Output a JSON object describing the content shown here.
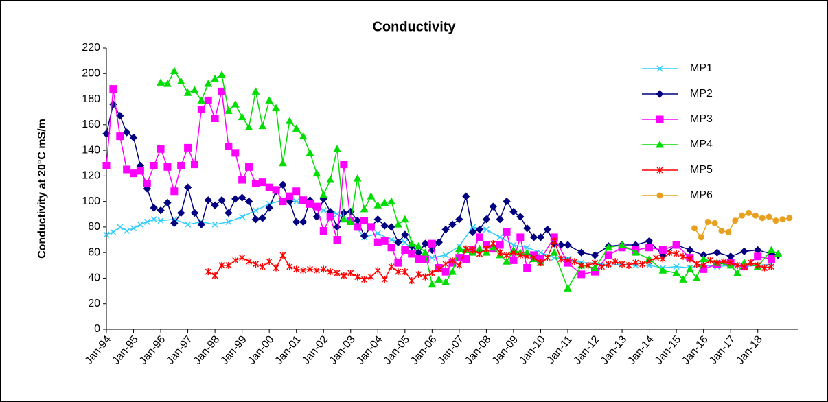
{
  "chart_data": {
    "type": "line",
    "title": "Conductivity",
    "y_label": "Conductivity at 20°C  mS/m",
    "xlim": [
      "Jan-94",
      "Jul-19"
    ],
    "xticks": [
      "Jan-94",
      "Jan-95",
      "Jan-96",
      "Jan-97",
      "Jan-98",
      "Jan-99",
      "Jan-00",
      "Jan-01",
      "Jan-02",
      "Jan-03",
      "Jan-04",
      "Jan-05",
      "Jan-06",
      "Jan-07",
      "Jan-08",
      "Jan-09",
      "Jan-10",
      "Jan-11",
      "Jan-12",
      "Jan-13",
      "Jan-14",
      "Jan-15",
      "Jan-16",
      "Jan-17",
      "Jan-18"
    ],
    "ylim": [
      0,
      220
    ],
    "yticks": [
      0,
      20,
      40,
      60,
      80,
      100,
      120,
      140,
      160,
      180,
      200,
      220
    ],
    "grid": false,
    "legend": "right",
    "series": [
      {
        "name": "MP1",
        "color": "#33ccff",
        "marker": "x",
        "x": [
          "Jan-94",
          "Apr-94",
          "Jul-94",
          "Oct-94",
          "Jan-95",
          "Apr-95",
          "Jul-95",
          "Oct-95",
          "Jan-96",
          "Jul-96",
          "Jan-97",
          "Jul-97",
          "Jan-98",
          "Jul-98",
          "Jan-99",
          "Jul-99",
          "Jan-00",
          "Jul-00",
          "Jan-01",
          "Jul-01",
          "Jan-02",
          "Jul-02",
          "Jan-03",
          "Jul-03",
          "Jan-04",
          "Jul-04",
          "Jan-05",
          "Jul-05",
          "Jan-06",
          "Jul-06",
          "Jan-07",
          "Jul-07",
          "Jan-08",
          "Jul-08",
          "Jan-09",
          "Jul-09",
          "Jan-10",
          "Jul-10",
          "Jan-11",
          "Jul-11",
          "Jan-12",
          "Jul-12",
          "Jan-13",
          "Jul-13",
          "Jan-14",
          "Jul-14",
          "Jan-15",
          "Jul-15",
          "Jan-16",
          "Jul-16",
          "Jan-17",
          "Jul-17",
          "Jan-18",
          "Jul-18"
        ],
        "values": [
          74,
          76,
          80,
          77,
          79,
          82,
          84,
          86,
          85,
          86,
          82,
          84,
          82,
          84,
          88,
          93,
          98,
          101,
          100,
          98,
          93,
          90,
          85,
          72,
          75,
          70,
          68,
          58,
          56,
          58,
          65,
          80,
          78,
          72,
          66,
          64,
          60,
          56,
          55,
          52,
          52,
          50,
          51,
          50,
          50,
          48,
          49,
          48,
          50,
          49,
          50,
          49,
          50,
          51
        ]
      },
      {
        "name": "MP2",
        "color": "#000080",
        "marker": "diamond",
        "x": [
          "Jan-94",
          "Apr-94",
          "Jul-94",
          "Oct-94",
          "Jan-95",
          "Apr-95",
          "Jul-95",
          "Oct-95",
          "Jan-96",
          "Apr-96",
          "Jul-96",
          "Oct-96",
          "Jan-97",
          "Apr-97",
          "Jul-97",
          "Oct-97",
          "Jan-98",
          "Apr-98",
          "Jul-98",
          "Oct-98",
          "Jan-99",
          "Apr-99",
          "Jul-99",
          "Oct-99",
          "Jan-00",
          "Apr-00",
          "Jul-00",
          "Oct-00",
          "Jan-01",
          "Apr-01",
          "Jul-01",
          "Oct-01",
          "Jan-02",
          "Apr-02",
          "Jul-02",
          "Oct-02",
          "Jan-03",
          "Apr-03",
          "Jul-03",
          "Oct-03",
          "Jan-04",
          "Apr-04",
          "Jul-04",
          "Oct-04",
          "Jan-05",
          "Apr-05",
          "Jul-05",
          "Oct-05",
          "Jan-06",
          "Apr-06",
          "Jul-06",
          "Oct-06",
          "Jan-07",
          "Apr-07",
          "Jul-07",
          "Oct-07",
          "Jan-08",
          "Apr-08",
          "Jul-08",
          "Oct-08",
          "Jan-09",
          "Apr-09",
          "Jul-09",
          "Oct-09",
          "Jan-10",
          "Apr-10",
          "Jul-10",
          "Oct-10",
          "Jan-11",
          "Jul-11",
          "Jan-12",
          "Jul-12",
          "Jan-13",
          "Jul-13",
          "Jan-14",
          "Jul-14",
          "Jan-15",
          "Jul-15",
          "Jan-16",
          "Jul-16",
          "Jan-17",
          "Jul-17",
          "Jan-18",
          "Jul-18",
          "Oct-18"
        ],
        "values": [
          153,
          176,
          167,
          154,
          150,
          128,
          110,
          95,
          93,
          99,
          83,
          91,
          111,
          91,
          82,
          101,
          97,
          101,
          91,
          102,
          103,
          100,
          86,
          87,
          95,
          108,
          113,
          100,
          84,
          84,
          101,
          88,
          102,
          92,
          80,
          91,
          92,
          85,
          73,
          80,
          86,
          81,
          80,
          68,
          74,
          65,
          60,
          67,
          62,
          68,
          78,
          82,
          86,
          104,
          76,
          78,
          86,
          96,
          86,
          100,
          92,
          88,
          79,
          72,
          72,
          78,
          67,
          66,
          66,
          60,
          58,
          65,
          66,
          66,
          69,
          58,
          66,
          62,
          58,
          60,
          57,
          61,
          62,
          59,
          58
        ]
      },
      {
        "name": "MP3",
        "color": "#ff00ff",
        "marker": "square",
        "x": [
          "Jan-94",
          "Apr-94",
          "Jul-94",
          "Oct-94",
          "Jan-95",
          "Apr-95",
          "Jul-95",
          "Oct-95",
          "Jan-96",
          "Apr-96",
          "Jul-96",
          "Oct-96",
          "Jan-97",
          "Apr-97",
          "Jul-97",
          "Oct-97",
          "Jan-98",
          "Apr-98",
          "Jul-98",
          "Oct-98",
          "Jan-99",
          "Apr-99",
          "Jul-99",
          "Oct-99",
          "Jan-00",
          "Apr-00",
          "Jul-00",
          "Oct-00",
          "Jan-01",
          "Apr-01",
          "Jul-01",
          "Oct-01",
          "Jan-02",
          "Apr-02",
          "Jul-02",
          "Oct-02",
          "Jan-03",
          "Apr-03",
          "Jul-03",
          "Oct-03",
          "Jan-04",
          "Apr-04",
          "Jul-04",
          "Oct-04",
          "Jan-05",
          "Apr-05",
          "Jul-05",
          "Oct-05",
          "Jan-06",
          "Apr-06",
          "Jul-06",
          "Oct-06",
          "Jan-07",
          "Apr-07",
          "Jul-07",
          "Oct-07",
          "Jan-08",
          "Apr-08",
          "Jul-08",
          "Oct-08",
          "Jan-09",
          "Apr-09",
          "Jul-09",
          "Oct-09",
          "Jan-10",
          "Jul-10",
          "Jan-11",
          "Jul-11",
          "Jan-12",
          "Jul-12",
          "Jan-13",
          "Jul-13",
          "Jan-14",
          "Jul-14",
          "Jan-15",
          "Jul-15",
          "Jan-16",
          "Jul-16",
          "Jan-17",
          "Jul-17",
          "Jan-18",
          "Jul-18"
        ],
        "values": [
          128,
          188,
          151,
          125,
          122,
          124,
          114,
          128,
          141,
          127,
          108,
          128,
          142,
          129,
          172,
          179,
          165,
          186,
          143,
          138,
          117,
          127,
          114,
          115,
          111,
          109,
          100,
          104,
          108,
          101,
          98,
          96,
          77,
          88,
          70,
          129,
          85,
          80,
          85,
          80,
          68,
          69,
          64,
          52,
          62,
          59,
          55,
          55,
          67,
          48,
          45,
          52,
          56,
          55,
          62,
          72,
          66,
          63,
          66,
          76,
          54,
          72,
          48,
          58,
          55,
          72,
          52,
          43,
          45,
          58,
          64,
          62,
          64,
          62,
          66,
          56,
          47,
          51,
          52,
          49,
          57,
          55
        ]
      },
      {
        "name": "MP4",
        "color": "#00dd00",
        "marker": "triangle",
        "x": [
          "Jan-96",
          "Apr-96",
          "Jul-96",
          "Oct-96",
          "Jan-97",
          "Apr-97",
          "Jul-97",
          "Oct-97",
          "Jan-98",
          "Apr-98",
          "Jul-98",
          "Oct-98",
          "Jan-99",
          "Apr-99",
          "Jul-99",
          "Oct-99",
          "Jan-00",
          "Apr-00",
          "Jul-00",
          "Oct-00",
          "Jan-01",
          "Apr-01",
          "Jul-01",
          "Oct-01",
          "Jan-02",
          "Apr-02",
          "Jul-02",
          "Oct-02",
          "Jan-03",
          "Apr-03",
          "Jul-03",
          "Oct-03",
          "Jan-04",
          "Apr-04",
          "Jul-04",
          "Oct-04",
          "Jan-05",
          "Apr-05",
          "Jul-05",
          "Oct-05",
          "Jan-06",
          "Apr-06",
          "Jul-06",
          "Oct-06",
          "Jan-07",
          "Apr-07",
          "Jul-07",
          "Oct-07",
          "Jan-08",
          "Apr-08",
          "Jul-08",
          "Oct-08",
          "Jan-09",
          "Apr-09",
          "Jul-09",
          "Oct-09",
          "Jan-10",
          "Jul-10",
          "Jan-11",
          "Jul-11",
          "Jan-12",
          "Jul-12",
          "Jan-13",
          "Jul-13",
          "Jan-14",
          "Jul-14",
          "Jan-15",
          "Apr-15",
          "Jul-15",
          "Oct-15",
          "Jan-16",
          "Jul-16",
          "Jan-17",
          "Apr-17",
          "Jul-17",
          "Jan-18",
          "Jul-18",
          "Oct-18"
        ],
        "values": [
          193,
          192,
          202,
          194,
          185,
          187,
          179,
          192,
          196,
          199,
          171,
          176,
          166,
          158,
          186,
          159,
          179,
          173,
          130,
          163,
          157,
          151,
          138,
          122,
          105,
          117,
          141,
          86,
          84,
          118,
          94,
          104,
          97,
          99,
          100,
          82,
          86,
          67,
          65,
          60,
          35,
          39,
          37,
          45,
          63,
          62,
          60,
          63,
          60,
          64,
          58,
          53,
          62,
          60,
          60,
          55,
          52,
          60,
          32,
          50,
          48,
          64,
          66,
          60,
          55,
          46,
          44,
          39,
          47,
          40,
          55,
          52,
          50,
          44,
          52,
          49,
          62,
          59
        ]
      },
      {
        "name": "MP5",
        "color": "#ff0000",
        "marker": "star",
        "x": [
          "Oct-97",
          "Jan-98",
          "Apr-98",
          "Jul-98",
          "Oct-98",
          "Jan-99",
          "Apr-99",
          "Jul-99",
          "Oct-99",
          "Jan-00",
          "Apr-00",
          "Jul-00",
          "Oct-00",
          "Jan-01",
          "Apr-01",
          "Jul-01",
          "Oct-01",
          "Jan-02",
          "Apr-02",
          "Jul-02",
          "Oct-02",
          "Jan-03",
          "Apr-03",
          "Jul-03",
          "Oct-03",
          "Jan-04",
          "Apr-04",
          "Jul-04",
          "Oct-04",
          "Jan-05",
          "Apr-05",
          "Jul-05",
          "Oct-05",
          "Jan-06",
          "Apr-06",
          "Jul-06",
          "Oct-06",
          "Jan-07",
          "Apr-07",
          "Jul-07",
          "Oct-07",
          "Jan-08",
          "Apr-08",
          "Jul-08",
          "Oct-08",
          "Jan-09",
          "Apr-09",
          "Jul-09",
          "Oct-09",
          "Jan-10",
          "Apr-10",
          "Jul-10",
          "Oct-10",
          "Jan-11",
          "Apr-11",
          "Jul-11",
          "Oct-11",
          "Jan-12",
          "Apr-12",
          "Jul-12",
          "Oct-12",
          "Jan-13",
          "Apr-13",
          "Jul-13",
          "Oct-13",
          "Jan-14",
          "Apr-14",
          "Jul-14",
          "Oct-14",
          "Jan-15",
          "Apr-15",
          "Jul-15",
          "Oct-15",
          "Jan-16",
          "Apr-16",
          "Jul-16",
          "Oct-16",
          "Jan-17",
          "Apr-17",
          "Jul-17",
          "Oct-17",
          "Jan-18",
          "Apr-18",
          "Jul-18"
        ],
        "values": [
          45,
          42,
          50,
          50,
          54,
          56,
          53,
          51,
          49,
          53,
          48,
          58,
          49,
          47,
          46,
          47,
          46,
          47,
          45,
          44,
          42,
          44,
          41,
          39,
          41,
          46,
          39,
          49,
          45,
          45,
          38,
          43,
          41,
          44,
          47,
          51,
          54,
          50,
          63,
          62,
          59,
          63,
          67,
          60,
          58,
          60,
          58,
          57,
          56,
          52,
          56,
          69,
          55,
          54,
          53,
          50,
          50,
          52,
          49,
          51,
          53,
          51,
          50,
          52,
          51,
          53,
          56,
          55,
          60,
          59,
          57,
          55,
          51,
          50,
          54,
          52,
          53,
          52,
          50,
          49,
          52,
          50,
          48,
          49
        ]
      },
      {
        "name": "MP6",
        "color": "#e8a020",
        "marker": "circle",
        "x": [
          "Sep-15",
          "Dec-15",
          "Mar-16",
          "Jun-16",
          "Sep-16",
          "Dec-16",
          "Mar-17",
          "Jun-17",
          "Sep-17",
          "Dec-17",
          "Mar-18",
          "Jun-18",
          "Sep-18",
          "Dec-18",
          "Mar-19"
        ],
        "values": [
          79,
          72,
          84,
          83,
          77,
          76,
          85,
          89,
          91,
          89,
          87,
          88,
          85,
          86,
          87
        ]
      }
    ]
  }
}
